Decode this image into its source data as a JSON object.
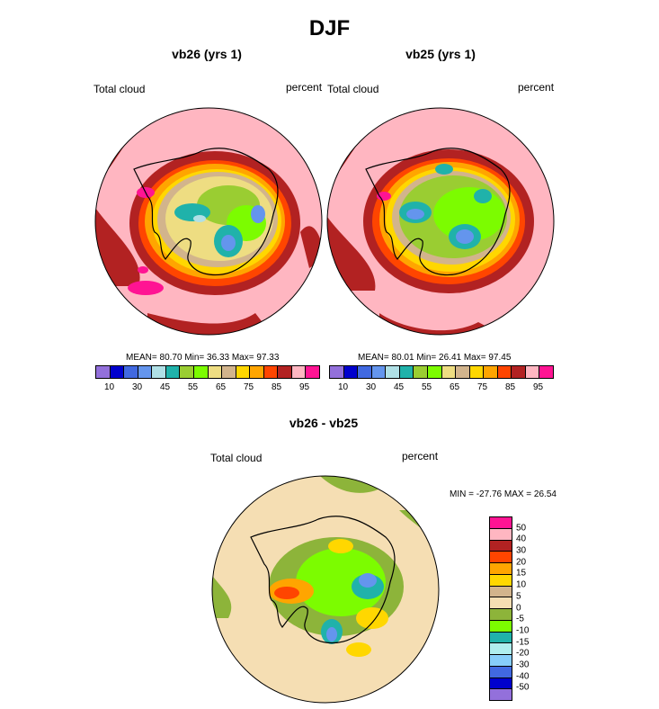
{
  "title": "DJF",
  "panels": [
    {
      "subtitle": "vb26 (yrs 1)",
      "left_label": "Total cloud",
      "right_label": "percent",
      "stats": "MEAN=  80.70  Min=  36.33  Max=  97.33"
    },
    {
      "subtitle": "vb25 (yrs 1)",
      "left_label": "Total cloud",
      "right_label": "percent",
      "stats": "MEAN=  80.01  Min=  26.41  Max=  97.45"
    }
  ],
  "colorbar_top": {
    "colors": [
      "#9370db",
      "#0000cd",
      "#4169e1",
      "#6495ed",
      "#b0e0e6",
      "#20b2aa",
      "#9acd32",
      "#7cfc00",
      "#eedd82",
      "#d2b48c",
      "#ffd700",
      "#ffa500",
      "#ff4500",
      "#b22222",
      "#ffb6c1",
      "#ff1493"
    ],
    "tick_labels": [
      "10",
      "30",
      "45",
      "55",
      "65",
      "75",
      "85",
      "95"
    ]
  },
  "diff_panel": {
    "subtitle": "vb26 - vb25",
    "left_label": "Total cloud",
    "right_label": "percent",
    "minmax": "MIN = -27.76 MAX =  26.54"
  },
  "colorbar_diff": {
    "colors": [
      "#ff1493",
      "#ffb6c1",
      "#b22222",
      "#ff4500",
      "#ffa500",
      "#ffd700",
      "#d2b48c",
      "#f5deb3",
      "#8db43a",
      "#7cfc00",
      "#20b2aa",
      "#afeeee",
      "#87cefa",
      "#4169e1",
      "#0000cd",
      "#9370db"
    ],
    "tick_labels": [
      "50",
      "40",
      "30",
      "20",
      "15",
      "10",
      "5",
      "0",
      "-5",
      "-10",
      "-15",
      "-20",
      "-30",
      "-40",
      "-50"
    ]
  }
}
